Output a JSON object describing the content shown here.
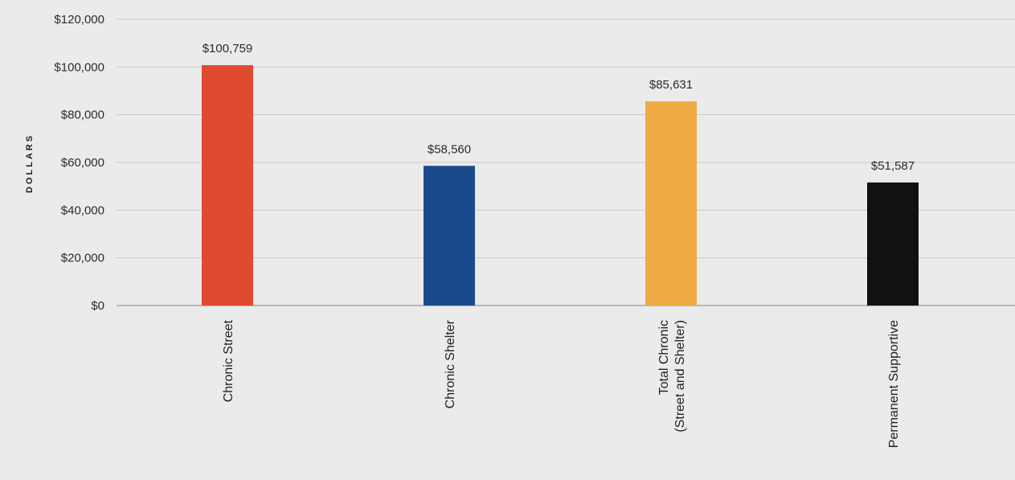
{
  "chart_data": {
    "type": "bar",
    "ylabel": "DOLLARS",
    "xlabel": "",
    "ylim": [
      0,
      120000
    ],
    "yticks": [
      0,
      20000,
      40000,
      60000,
      80000,
      100000,
      120000
    ],
    "ytick_labels": [
      "$0",
      "$20,000",
      "$40,000",
      "$60,000",
      "$80,000",
      "$100,000",
      "$120,000"
    ],
    "grid": true,
    "categories": [
      [
        "Chronic Street"
      ],
      [
        "Chronic Shelter"
      ],
      [
        "Total Chronic",
        "(Street and Shelter)"
      ],
      [
        "Permanent Supportive"
      ]
    ],
    "values": [
      100759,
      58560,
      85631,
      51587
    ],
    "value_labels": [
      "$100,759",
      "$58,560",
      "$85,631",
      "$51,587"
    ],
    "colors": [
      "#e04a2f",
      "#1a4a8c",
      "#efab44",
      "#111111"
    ]
  }
}
